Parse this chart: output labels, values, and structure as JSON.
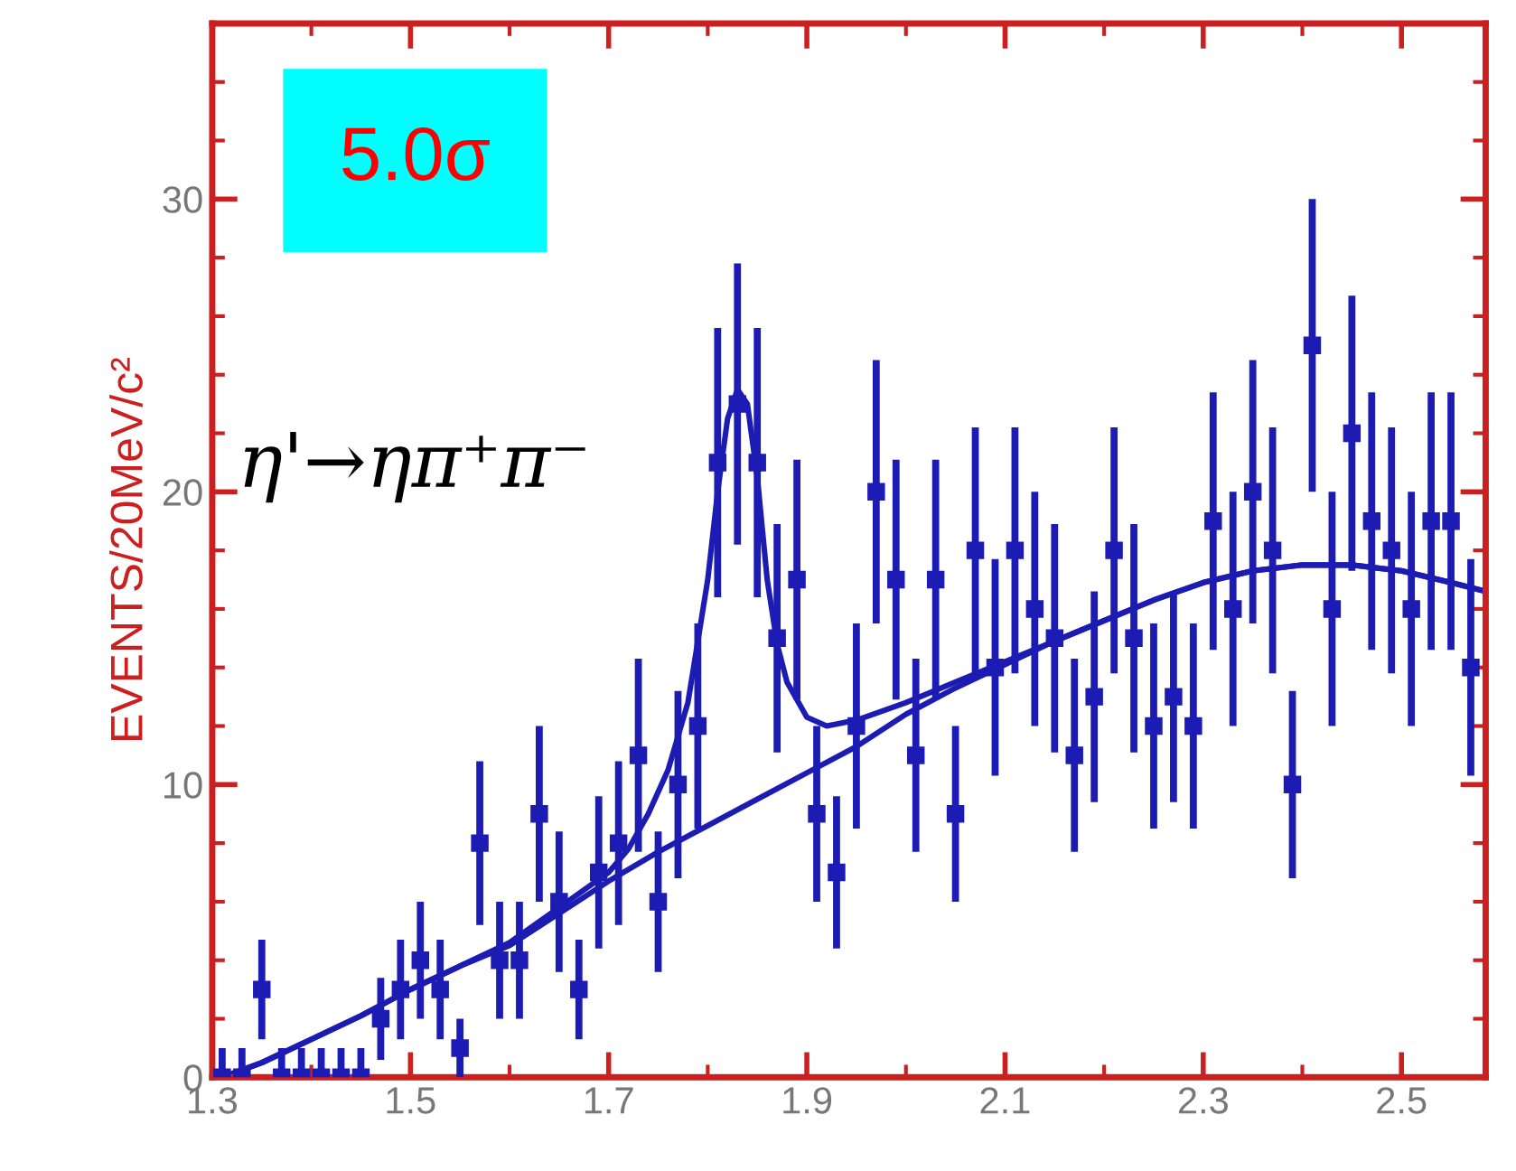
{
  "chart_data": {
    "type": "scatter",
    "ylabel": "EVENTS/20MeV/c²",
    "xlim": [
      1.3,
      2.585
    ],
    "ylim": [
      0,
      36
    ],
    "xticks": [
      1.3,
      1.5,
      1.7,
      1.9,
      2.1,
      2.3,
      2.5
    ],
    "yticks": [
      0,
      10,
      20,
      30
    ],
    "grid": false,
    "annotations": [
      "5.0σ",
      "η'→ηπ⁺π⁻"
    ],
    "series": [
      {
        "color": "#1c1cb4",
        "marker": "square",
        "x": [
          1.31,
          1.33,
          1.35,
          1.37,
          1.39,
          1.41,
          1.43,
          1.45,
          1.47,
          1.49,
          1.51,
          1.53,
          1.55,
          1.57,
          1.59,
          1.61,
          1.63,
          1.65,
          1.67,
          1.69,
          1.71,
          1.73,
          1.75,
          1.77,
          1.79,
          1.81,
          1.83,
          1.85,
          1.87,
          1.89,
          1.91,
          1.93,
          1.95,
          1.97,
          1.99,
          2.01,
          2.03,
          2.05,
          2.07,
          2.09,
          2.11,
          2.13,
          2.15,
          2.17,
          2.19,
          2.21,
          2.23,
          2.25,
          2.27,
          2.29,
          2.31,
          2.33,
          2.35,
          2.37,
          2.39,
          2.41,
          2.43,
          2.45,
          2.47,
          2.49,
          2.51,
          2.53,
          2.55,
          2.57
        ],
        "values": [
          0,
          0,
          3,
          0,
          0,
          0,
          0,
          0,
          2,
          3,
          4,
          3,
          1,
          8,
          4,
          4,
          9,
          6,
          3,
          7,
          8,
          11,
          6,
          10,
          12,
          21,
          23,
          21,
          15,
          17,
          9,
          7,
          12,
          20,
          17,
          11,
          17,
          9,
          18,
          14,
          18,
          16,
          15,
          11,
          13,
          18,
          15,
          12,
          13,
          12,
          19,
          16,
          20,
          18,
          10,
          25,
          16,
          22,
          19,
          18,
          16,
          19,
          19,
          14
        ],
        "errors": [
          [
            0,
            1
          ],
          [
            0,
            1
          ],
          1.7,
          [
            0,
            1
          ],
          [
            0,
            1
          ],
          [
            0,
            1
          ],
          [
            0,
            1
          ],
          [
            0,
            1
          ],
          1.4,
          1.7,
          2,
          1.7,
          1,
          2.8,
          2,
          2,
          3,
          2.4,
          1.7,
          2.6,
          2.8,
          3.3,
          2.4,
          3.2,
          3.5,
          4.6,
          4.8,
          4.6,
          3.9,
          4.1,
          3,
          2.6,
          3.5,
          4.5,
          4.1,
          3.3,
          4.1,
          3,
          4.2,
          3.7,
          4.2,
          4,
          3.9,
          3.3,
          3.6,
          4.2,
          3.9,
          3.5,
          3.6,
          3.5,
          4.4,
          4,
          4.5,
          4.2,
          3.2,
          5,
          4,
          4.7,
          4.4,
          4.2,
          4,
          4.4,
          4.4,
          3.7
        ]
      },
      {
        "type": "line",
        "color": "#1c1cb4",
        "line_style": "solid",
        "marker": "none",
        "x": [
          1.31,
          1.35,
          1.4,
          1.45,
          1.5,
          1.55,
          1.6,
          1.65,
          1.7,
          1.72,
          1.74,
          1.76,
          1.78,
          1.8,
          1.81,
          1.82,
          1.83,
          1.84,
          1.85,
          1.86,
          1.87,
          1.88,
          1.9,
          1.92,
          1.95,
          2.0,
          2.05,
          2.1,
          2.15,
          2.2,
          2.25,
          2.3,
          2.35,
          2.4,
          2.45,
          2.5,
          2.55,
          2.585
        ],
        "values": [
          0,
          0.5,
          1.3,
          2.1,
          3.0,
          3.8,
          4.6,
          5.8,
          7.0,
          7.8,
          9.0,
          10.5,
          12.8,
          17,
          20,
          22.5,
          23.5,
          23,
          20.5,
          17,
          14.8,
          13.5,
          12.3,
          12.0,
          12.2,
          12.8,
          13.5,
          14.2,
          14.9,
          15.6,
          16.3,
          16.9,
          17.3,
          17.5,
          17.5,
          17.3,
          16.9,
          16.6
        ]
      },
      {
        "type": "line",
        "color": "#1c1cb4",
        "line_style": "solid",
        "marker": "none",
        "x": [
          1.31,
          1.35,
          1.4,
          1.45,
          1.5,
          1.55,
          1.6,
          1.65,
          1.7,
          1.75,
          1.8,
          1.85,
          1.9,
          1.95,
          2.0,
          2.05,
          2.1,
          2.15,
          2.2,
          2.25,
          2.3,
          2.35,
          2.4,
          2.45,
          2.5,
          2.55,
          2.585
        ],
        "values": [
          0,
          0.5,
          1.3,
          2.1,
          3.0,
          3.8,
          4.5,
          5.6,
          6.7,
          7.7,
          8.6,
          9.5,
          10.4,
          11.3,
          12.4,
          13.3,
          14.1,
          14.9,
          15.6,
          16.3,
          16.9,
          17.3,
          17.5,
          17.5,
          17.3,
          16.9,
          16.6
        ]
      }
    ]
  }
}
